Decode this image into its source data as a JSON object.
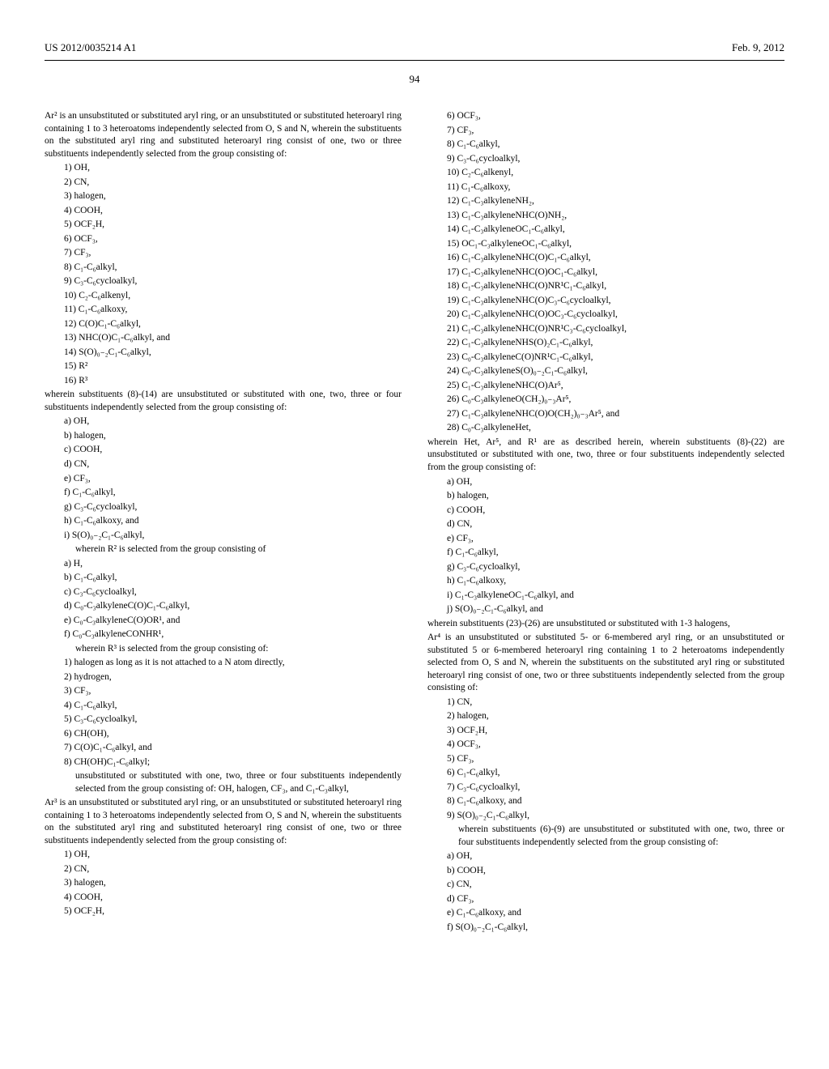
{
  "header": {
    "left": "US 2012/0035214 A1",
    "right": "Feb. 9, 2012"
  },
  "pageNumber": "94",
  "left": {
    "ar2Intro": "Ar² is an unsubstituted or substituted aryl ring, or an unsubstituted or substituted heteroaryl ring containing 1 to 3 heteroatoms independently selected from O, S and N, wherein the substituents on the substituted aryl ring and substituted heteroaryl ring consist of one, two or three substituents independently selected from the group consisting of:",
    "ar2List": [
      "1) OH,",
      "2) CN,",
      "3) halogen,",
      "4) COOH,",
      "5) OCF₂H,",
      "6) OCF₃,",
      "7) CF₃,",
      "8) C₁-C₆alkyl,",
      "9) C₃-C₆cycloalkyl,",
      "10) C₂-C₆alkenyl,",
      "11) C₁-C₆alkoxy,",
      "12) C(O)C₁-C₆alkyl,",
      "13) NHC(O)C₁-C₆alkyl, and",
      "14) S(O)₀₋₂C₁-C₆alkyl,",
      "15) R²",
      "16) R³"
    ],
    "sub8to14": "wherein substituents (8)-(14) are unsubstituted or substituted with one, two, three or four substituents independently selected from the group consisting of:",
    "subAList": [
      "a) OH,",
      "b) halogen,",
      "c) COOH,",
      "d) CN,",
      "e) CF₃,",
      "f) C₁-C₆alkyl,",
      "g) C₃-C₆cycloalkyl,",
      "h) C₁-C₆alkoxy, and",
      "i) S(O)₀₋₂C₁-C₆alkyl,"
    ],
    "r2Intro": "wherein R² is selected from the group consisting of",
    "r2List": [
      "a) H,",
      "b) C₁-C₆alkyl,",
      "c) C₃-C₆cycloalkyl,",
      "d) C₀-C₃alkyleneC(O)C₁-C₆alkyl,",
      "e) C₀-C₃alkyleneC(O)OR¹, and",
      "f) C₀-C₃alkyleneCONHR¹,"
    ],
    "r3Intro": "wherein R³ is selected from the group consisting of:",
    "r3List": [
      "1) halogen as long as it is not attached to a N atom directly,",
      "2) hydrogen,",
      "3) CF₃,",
      "4) C₁-C₆alkyl,",
      "5) C₃-C₆cycloalkyl,",
      "6) CH(OH),",
      "7) C(O)C₁-C₆alkyl, and",
      "8) CH(OH)C₁-C₆alkyl;"
    ],
    "r3Tail": "unsubstituted or substituted with one, two, three or four substituents independently selected from the group consisting of: OH, halogen, CF₃, and C₁-C₃alkyl,",
    "ar3Intro": "Ar³ is an unsubstituted or substituted aryl ring, or an unsubstituted or substituted heteroaryl ring containing 1 to 3 heteroatoms independently selected from O, S and N, wherein the substituents on the substituted aryl ring and substituted heteroaryl ring consist of one, two or three substituents independently selected from the group consisting of:",
    "ar3List": [
      "1) OH,",
      "2) CN,",
      "3) halogen,",
      "4) COOH,",
      "5) OCF₂H,"
    ]
  },
  "right": {
    "topList": [
      "6) OCF₃,",
      "7) CF₃,",
      "8) C₁-C₆alkyl,",
      "9) C₃-C₆cycloalkyl,",
      "10) C₂-C₆alkenyl,",
      "11) C₁-C₆alkoxy,",
      "12) C₁-C₃alkyleneNH₂,",
      "13) C₁-C₃alkyleneNHC(O)NH₂,",
      "14) C₁-C₃alkyleneOC₁-C₆alkyl,",
      "15) OC₁-C₃alkyleneOC₁-C₆alkyl,",
      "16) C₁-C₃alkyleneNHC(O)C₁-C₆alkyl,",
      "17) C₁-C₃alkyleneNHC(O)OC₁-C₆alkyl,",
      "18) C₁-C₃alkyleneNHC(O)NR¹C₁-C₆alkyl,",
      "19) C₁-C₃alkyleneNHC(O)C₃-C₆cycloalkyl,",
      "20) C₁-C₃alkyleneNHC(O)OC₃-C₆cycloalkyl,",
      "21) C₁-C₃alkyleneNHC(O)NR¹C₃-C₆cycloalkyl,",
      "22) C₁-C₃alkyleneNHS(O)₂C₁-C₆alkyl,",
      "23) C₀-C₃alkyleneC(O)NR¹C₁-C₆alkyl,",
      "24) C₀-C₃alkyleneS(O)₀₋₂C₁-C₆alkyl,",
      "25) C₁-C₃alkyleneNHC(O)Ar⁵,",
      "26) C₀-C₃alkyleneO(CH₂)₀₋₃Ar⁵,",
      "27) C₁-C₃alkyleneNHC(O)O(CH₂)₀₋₃Ar⁵, and",
      "28) C₀-C₃alkyleneHet,"
    ],
    "hetNote": "wherein Het, Ar⁵, and R¹ are as described herein, wherein substituents (8)-(22) are unsubstituted or substituted with one, two, three or four substituents independently selected from the group consisting of:",
    "hetSubList": [
      "a) OH,",
      "b) halogen,",
      "c) COOH,",
      "d) CN,",
      "e) CF₃,",
      "f) C₁-C₆alkyl,",
      "g) C₃-C₆cycloalkyl,",
      "h) C₁-C₆alkoxy,",
      "i) C₁-C₃alkyleneOC₁-C₆alkyl, and",
      "j) S(O)₀₋₂C₁-C₆alkyl, and"
    ],
    "sub23to26": "wherein substituents (23)-(26) are unsubstituted or substituted with 1-3 halogens,",
    "ar4Intro": "Ar⁴ is an unsubstituted or substituted 5- or 6-membered aryl ring, or an unsubstituted or substituted 5 or 6-membered heteroaryl ring containing 1 to 2 heteroatoms independently selected from O, S and N, wherein the substituents on the substituted aryl ring or substituted heteroaryl ring consist of one, two or three substituents independently selected from the group consisting of:",
    "ar4List": [
      "1) CN,",
      "2) halogen,",
      "3) OCF₂H,",
      "4) OCF₃,",
      "5) CF₃,",
      "6) C₁-C₆alkyl,",
      "7) C₃-C₆cycloalkyl,",
      "8) C₁-C₆alkoxy, and",
      "9) S(O)₀₋₂C₁-C₆alkyl,"
    ],
    "ar4SubNote": "wherein substituents (6)-(9) are unsubstituted or substituted with one, two, three or four substituents independently selected from the group consisting of:",
    "ar4SubList": [
      "a) OH,",
      "b) COOH,",
      "c) CN,",
      "d) CF₃,",
      "e) C₁-C₆alkoxy, and",
      "f) S(O)₀₋₂C₁-C₆alkyl,"
    ]
  }
}
